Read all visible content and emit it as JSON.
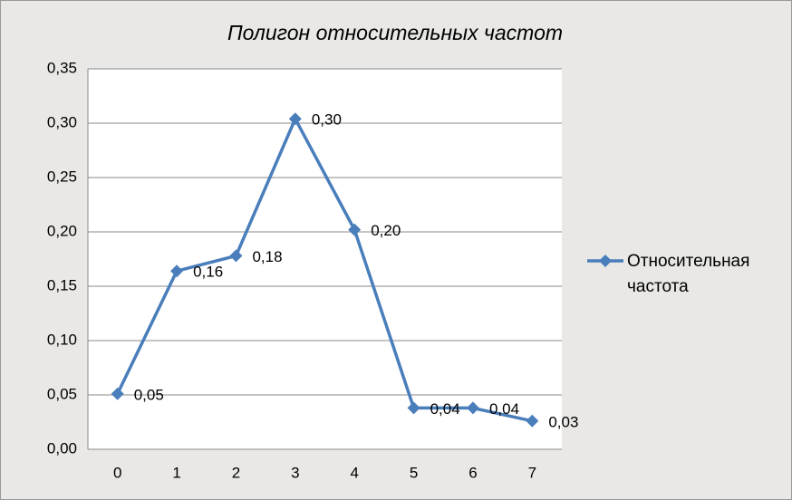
{
  "chart_data": {
    "type": "line",
    "title": "Полигон относительных частот",
    "categories": [
      "0",
      "1",
      "2",
      "3",
      "4",
      "5",
      "6",
      "7"
    ],
    "series": [
      {
        "name": "Относительная частота",
        "color": "#4a7ebb",
        "values": [
          0.051,
          0.164,
          0.178,
          0.304,
          0.202,
          0.038,
          0.038,
          0.026
        ],
        "value_labels": [
          "0,05",
          "0,16",
          "0,18",
          "0,30",
          "0,20",
          "0,04",
          "0,04",
          "0,03"
        ]
      }
    ],
    "ylim": [
      0,
      0.35
    ],
    "yticks": [
      {
        "value": 0,
        "label": "0,00"
      },
      {
        "value": 0.05,
        "label": "0,05"
      },
      {
        "value": 0.1,
        "label": "0,10"
      },
      {
        "value": 0.15,
        "label": "0,15"
      },
      {
        "value": 0.2,
        "label": "0,20"
      },
      {
        "value": 0.25,
        "label": "0,25"
      },
      {
        "value": 0.3,
        "label": "0,30"
      },
      {
        "value": 0.35,
        "label": "0,35"
      }
    ],
    "grid": true,
    "legend": "right"
  }
}
